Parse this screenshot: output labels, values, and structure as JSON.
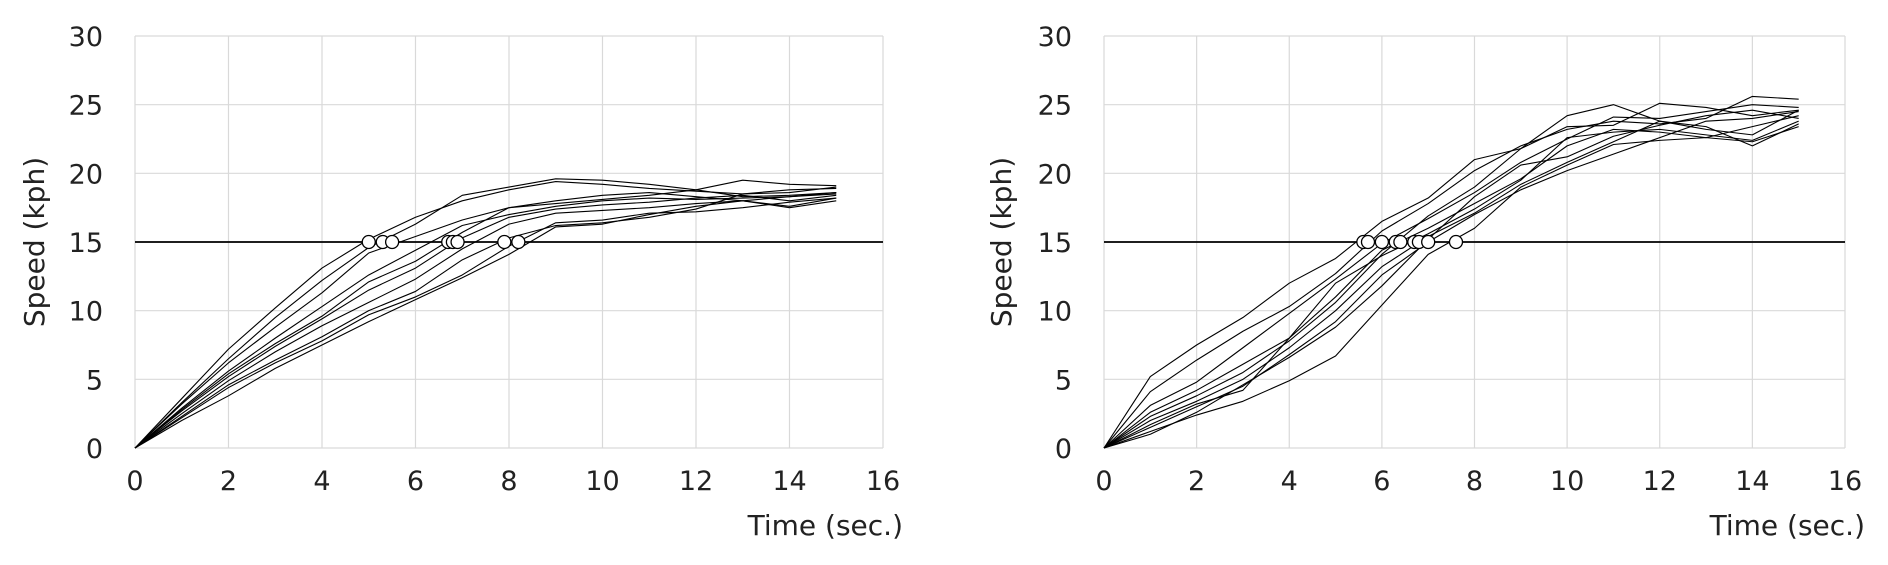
{
  "chart_data": [
    {
      "type": "line",
      "title": "",
      "xlabel": "Time (sec.)",
      "ylabel": "Speed (kph)",
      "xlim": [
        0,
        16
      ],
      "ylim": [
        0,
        30
      ],
      "xticks": [
        "0",
        "2",
        "4",
        "6",
        "8",
        "10",
        "12",
        "14",
        "16"
      ],
      "yticks": [
        "0",
        "5",
        "10",
        "15",
        "20",
        "25",
        "30"
      ],
      "grid": true,
      "threshold": 15,
      "x": [
        0,
        1,
        2,
        3,
        4,
        5,
        6,
        7,
        8,
        9,
        10,
        11,
        12,
        13,
        14,
        15
      ],
      "series": [
        {
          "values": [
            0,
            3.6,
            7.2,
            10.2,
            13.1,
            15.2,
            16.8,
            18.0,
            18.8,
            19.4,
            19.2,
            18.9,
            18.7,
            18.5,
            18.6,
            19.0
          ]
        },
        {
          "values": [
            0,
            3.3,
            6.5,
            9.5,
            12.2,
            14.6,
            16.3,
            18.4,
            19.0,
            19.6,
            19.5,
            19.2,
            18.8,
            18.3,
            18.4,
            18.6
          ]
        },
        {
          "values": [
            0,
            3.2,
            6.2,
            8.8,
            11.3,
            14.2,
            15.4,
            16.6,
            17.5,
            17.8,
            18.1,
            18.4,
            18.8,
            19.5,
            19.2,
            19.1
          ]
        },
        {
          "values": [
            0,
            2.9,
            5.6,
            8.0,
            10.3,
            12.6,
            14.4,
            16.2,
            17.0,
            17.6,
            18.0,
            18.2,
            18.1,
            18.2,
            18.3,
            18.5
          ]
        },
        {
          "values": [
            0,
            2.8,
            5.4,
            7.6,
            9.6,
            12.1,
            13.6,
            15.7,
            17.5,
            18.0,
            18.4,
            18.6,
            18.3,
            18.0,
            17.6,
            18.2
          ]
        },
        {
          "values": [
            0,
            2.7,
            5.2,
            7.4,
            9.4,
            11.5,
            13.1,
            15.3,
            16.8,
            17.4,
            17.7,
            17.9,
            18.2,
            18.4,
            18.0,
            18.4
          ]
        },
        {
          "values": [
            0,
            2.5,
            4.9,
            7.0,
            8.9,
            10.6,
            12.3,
            14.5,
            16.3,
            17.1,
            17.3,
            17.5,
            17.8,
            18.0,
            18.3,
            18.6
          ]
        },
        {
          "values": [
            0,
            2.3,
            4.6,
            6.4,
            8.1,
            10.0,
            11.4,
            13.7,
            15.3,
            16.2,
            16.4,
            16.8,
            17.4,
            18.5,
            18.8,
            18.9
          ]
        },
        {
          "values": [
            0,
            2.2,
            4.4,
            6.2,
            7.8,
            9.7,
            11.0,
            12.6,
            14.7,
            16.4,
            16.6,
            17.1,
            17.2,
            17.5,
            17.9,
            18.2
          ]
        },
        {
          "values": [
            0,
            2.0,
            3.8,
            5.8,
            7.5,
            9.2,
            10.8,
            12.4,
            14.1,
            16.1,
            16.3,
            17.0,
            17.6,
            18.0,
            17.5,
            18.0
          ]
        }
      ],
      "crossings": [
        5.0,
        5.3,
        5.5,
        6.7,
        6.8,
        6.9,
        7.9,
        8.2
      ]
    },
    {
      "type": "line",
      "title": "",
      "xlabel": "Time (sec.)",
      "ylabel": "Speed (kph)",
      "xlim": [
        0,
        16
      ],
      "ylim": [
        0,
        30
      ],
      "xticks": [
        "0",
        "2",
        "4",
        "6",
        "8",
        "10",
        "12",
        "14",
        "16"
      ],
      "yticks": [
        "0",
        "5",
        "10",
        "15",
        "20",
        "25",
        "30"
      ],
      "grid": true,
      "threshold": 15,
      "x": [
        0,
        1,
        2,
        3,
        4,
        5,
        6,
        7,
        8,
        9,
        10,
        11,
        12,
        13,
        14,
        15
      ],
      "series": [
        {
          "values": [
            0,
            5.2,
            7.5,
            9.5,
            12.0,
            13.8,
            16.5,
            18.2,
            21.0,
            21.8,
            24.2,
            25.0,
            23.8,
            23.2,
            22.8,
            24.6
          ]
        },
        {
          "values": [
            0,
            4.1,
            6.4,
            8.5,
            10.3,
            12.7,
            15.8,
            17.8,
            20.2,
            22.0,
            23.2,
            23.8,
            23.6,
            24.0,
            25.6,
            25.4
          ]
        },
        {
          "values": [
            0,
            3.1,
            4.8,
            7.3,
            9.8,
            12.3,
            14.9,
            16.7,
            18.6,
            20.8,
            22.5,
            24.1,
            24.0,
            24.5,
            25.0,
            24.8
          ]
        },
        {
          "values": [
            0,
            2.6,
            4.2,
            6.1,
            8.0,
            11.0,
            14.4,
            16.0,
            17.8,
            19.6,
            22.0,
            23.2,
            23.0,
            22.6,
            23.4,
            24.2
          ]
        },
        {
          "values": [
            0,
            2.3,
            3.8,
            5.5,
            7.8,
            10.6,
            14.1,
            16.9,
            19.0,
            21.8,
            23.4,
            23.5,
            25.1,
            24.8,
            24.2,
            24.6
          ]
        },
        {
          "values": [
            0,
            2.0,
            3.4,
            5.0,
            7.3,
            10.0,
            13.2,
            15.4,
            17.1,
            19.2,
            20.8,
            22.3,
            23.8,
            23.4,
            22.0,
            23.6
          ]
        },
        {
          "values": [
            0,
            1.7,
            3.2,
            4.2,
            8.0,
            12.0,
            14.0,
            15.6,
            17.4,
            19.5,
            22.6,
            23.0,
            23.2,
            22.8,
            22.4,
            23.8
          ]
        },
        {
          "values": [
            0,
            1.5,
            3.0,
            4.5,
            6.8,
            9.2,
            12.6,
            15.0,
            17.0,
            18.8,
            20.2,
            21.4,
            22.6,
            23.8,
            24.0,
            24.5
          ]
        },
        {
          "values": [
            0,
            1.2,
            2.4,
            3.4,
            4.9,
            6.7,
            10.4,
            14.1,
            16.0,
            19.0,
            20.6,
            22.1,
            22.4,
            22.6,
            22.3,
            23.4
          ]
        },
        {
          "values": [
            0,
            1.0,
            2.6,
            4.6,
            6.6,
            8.8,
            11.8,
            15.2,
            18.3,
            20.6,
            21.2,
            22.7,
            23.5,
            24.2,
            24.6,
            24.0
          ]
        }
      ],
      "crossings": [
        5.6,
        5.7,
        6.0,
        6.3,
        6.4,
        6.7,
        6.8,
        7.0,
        7.6
      ]
    }
  ]
}
